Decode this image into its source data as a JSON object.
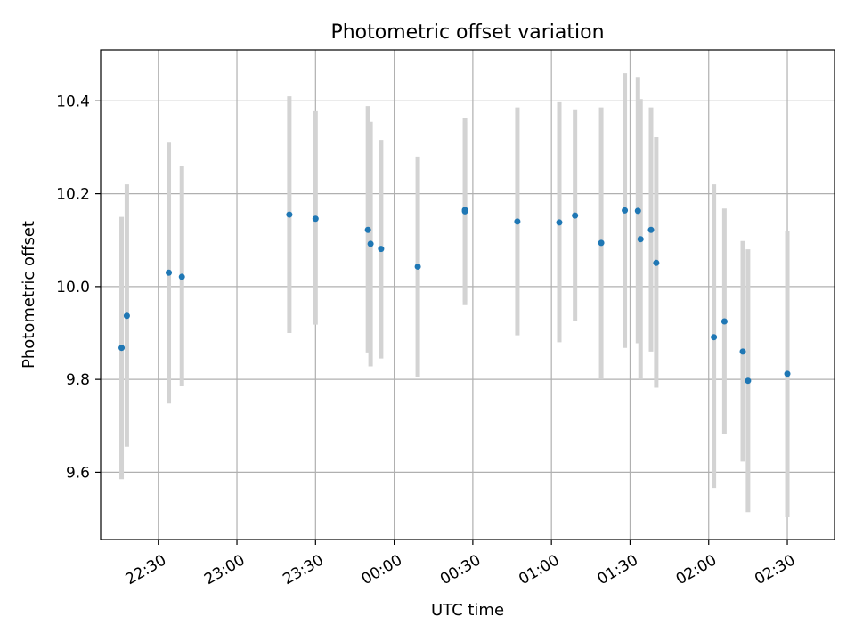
{
  "chart_data": {
    "type": "scatter",
    "title": "Photometric offset variation",
    "xlabel": "UTC time",
    "ylabel": "Photometric offset",
    "x_axis": "time",
    "xlim": [
      "22:08",
      "02:48"
    ],
    "ylim": [
      9.455,
      10.51
    ],
    "xticks": [
      "22:30",
      "23:00",
      "23:30",
      "00:00",
      "00:30",
      "01:00",
      "01:30",
      "02:00",
      "02:30"
    ],
    "yticks": [
      9.6,
      9.8,
      10.0,
      10.2,
      10.4
    ],
    "grid": true,
    "colors": {
      "point": "#1f77b4",
      "errorbar": "#d3d3d3",
      "grid": "#b0b0b0"
    },
    "points": [
      {
        "x": "22:16",
        "y": 9.868,
        "yerr_low": 9.585,
        "yerr_high": 10.15
      },
      {
        "x": "22:18",
        "y": 9.937,
        "yerr_low": 9.655,
        "yerr_high": 10.22
      },
      {
        "x": "22:34",
        "y": 10.03,
        "yerr_low": 9.748,
        "yerr_high": 10.31
      },
      {
        "x": "22:39",
        "y": 10.021,
        "yerr_low": 9.785,
        "yerr_high": 10.26
      },
      {
        "x": "23:20",
        "y": 10.155,
        "yerr_low": 9.9,
        "yerr_high": 10.41
      },
      {
        "x": "23:30",
        "y": 10.146,
        "yerr_low": 9.918,
        "yerr_high": 10.378
      },
      {
        "x": "23:50",
        "y": 10.122,
        "yerr_low": 9.858,
        "yerr_high": 10.389
      },
      {
        "x": "23:51",
        "y": 10.092,
        "yerr_low": 9.828,
        "yerr_high": 10.355
      },
      {
        "x": "23:55",
        "y": 10.081,
        "yerr_low": 9.845,
        "yerr_high": 10.316
      },
      {
        "x": "00:09",
        "y": 10.043,
        "yerr_low": 9.805,
        "yerr_high": 10.28
      },
      {
        "x": "00:27",
        "y": 10.165,
        "yerr_low": 9.96,
        "yerr_high": 10.363
      },
      {
        "x": "00:27",
        "y": 10.162,
        "yerr_low": 9.968,
        "yerr_high": 10.355
      },
      {
        "x": "00:47",
        "y": 10.14,
        "yerr_low": 9.895,
        "yerr_high": 10.386
      },
      {
        "x": "01:03",
        "y": 10.138,
        "yerr_low": 9.88,
        "yerr_high": 10.397
      },
      {
        "x": "01:09",
        "y": 10.153,
        "yerr_low": 9.925,
        "yerr_high": 10.382
      },
      {
        "x": "01:19",
        "y": 10.094,
        "yerr_low": 9.8,
        "yerr_high": 10.386
      },
      {
        "x": "01:28",
        "y": 10.164,
        "yerr_low": 9.868,
        "yerr_high": 10.46
      },
      {
        "x": "01:33",
        "y": 10.163,
        "yerr_low": 9.878,
        "yerr_high": 10.45
      },
      {
        "x": "01:34",
        "y": 10.102,
        "yerr_low": 9.8,
        "yerr_high": 10.404
      },
      {
        "x": "01:38",
        "y": 10.122,
        "yerr_low": 9.86,
        "yerr_high": 10.386
      },
      {
        "x": "01:40",
        "y": 10.051,
        "yerr_low": 9.782,
        "yerr_high": 10.322
      },
      {
        "x": "02:02",
        "y": 9.891,
        "yerr_low": 9.566,
        "yerr_high": 10.22
      },
      {
        "x": "02:06",
        "y": 9.925,
        "yerr_low": 9.683,
        "yerr_high": 10.168
      },
      {
        "x": "02:13",
        "y": 9.86,
        "yerr_low": 9.623,
        "yerr_high": 10.098
      },
      {
        "x": "02:15",
        "y": 9.797,
        "yerr_low": 9.514,
        "yerr_high": 10.08
      },
      {
        "x": "02:30",
        "y": 9.812,
        "yerr_low": 9.503,
        "yerr_high": 10.12
      }
    ]
  }
}
